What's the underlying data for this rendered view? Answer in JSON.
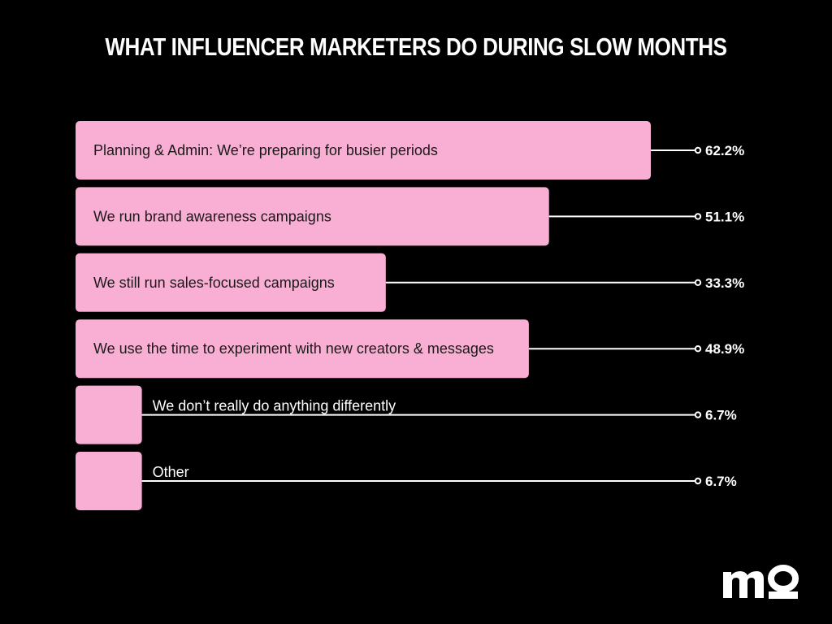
{
  "chart_data": {
    "type": "bar",
    "orientation": "horizontal",
    "title": "WHAT INFLUENCER MARKETERS DO DURING SLOW MONTHS",
    "categories": [
      "Planning & Admin: We’re preparing for busier periods",
      "We run brand awareness campaigns",
      "We still run sales-focused campaigns",
      "We use the time to experiment with new creators & messages",
      "We don’t really do anything differently",
      "Other"
    ],
    "values": [
      62.2,
      51.1,
      33.3,
      48.9,
      6.7,
      6.7
    ],
    "value_labels": [
      "62.2%",
      "51.1%",
      "33.3%",
      "48.9%",
      "6.7%",
      "6.7%"
    ],
    "unit": "%",
    "xlim": [
      0,
      62.2
    ],
    "grid": false,
    "legend": "none"
  },
  "colors": {
    "background": "#000000",
    "bar": "#f9aed3",
    "text_on_bar": "#1a1a1a",
    "text_light": "#ffffff",
    "leader_line": "#ffffff"
  },
  "logo": {
    "text": "mo",
    "icon": "brand-logo-icon"
  }
}
